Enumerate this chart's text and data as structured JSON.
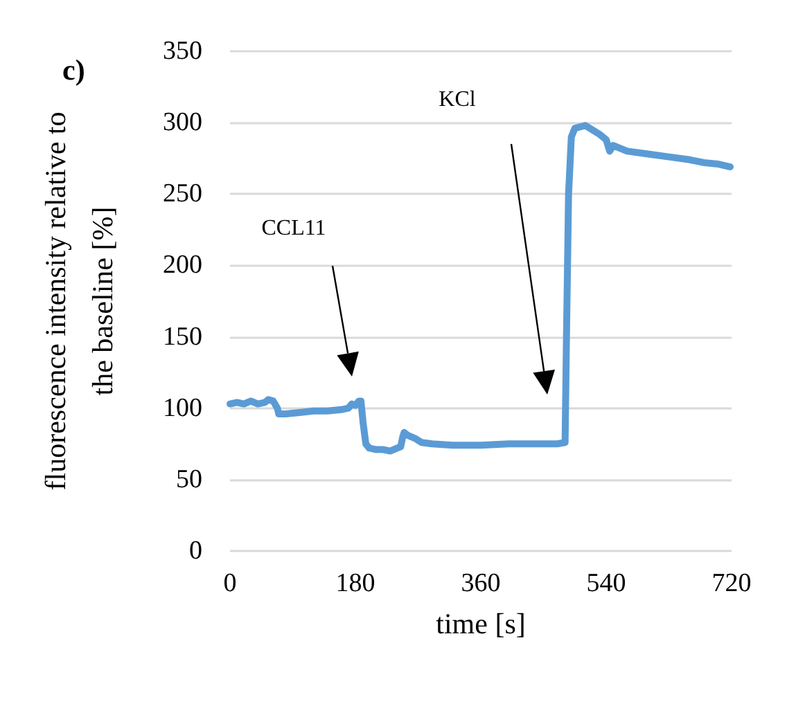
{
  "chart_data": {
    "type": "line",
    "title": "c)",
    "xlabel": "time [s]",
    "ylabel": "fluorescence intensity relative to\nthe baseline [%]",
    "xlim": [
      0,
      720
    ],
    "xticks": [
      0,
      180,
      360,
      540,
      720
    ],
    "ylim": [
      0,
      350
    ],
    "yticks": [
      0,
      50,
      100,
      150,
      200,
      250,
      300,
      350
    ],
    "grid": "y",
    "marker": "none",
    "line_style": "solid",
    "annotations": [
      "CCL11",
      "KCl"
    ],
    "series": [
      {
        "color": "#5b9bd5",
        "x": [
          0,
          10,
          20,
          30,
          40,
          50,
          55,
          62,
          68,
          70,
          80,
          100,
          120,
          140,
          160,
          170,
          175,
          180,
          185,
          188,
          191,
          195,
          200,
          210,
          220,
          230,
          240,
          245,
          248,
          250,
          255,
          265,
          275,
          290,
          320,
          360,
          400,
          440,
          470,
          481,
          483,
          486,
          490,
          495,
          510,
          520,
          530,
          540,
          545,
          550,
          570,
          600,
          630,
          660,
          680,
          700,
          718
        ],
        "values": [
          103,
          104,
          103,
          105,
          103,
          104,
          106,
          105,
          100,
          96,
          96,
          97,
          98,
          98,
          99,
          100,
          103,
          102,
          105,
          105,
          90,
          75,
          72,
          71,
          71,
          70,
          72,
          73,
          80,
          83,
          81,
          79,
          76,
          75,
          74,
          74,
          75,
          75,
          75,
          76,
          150,
          250,
          290,
          296,
          298,
          295,
          292,
          288,
          280,
          284,
          280,
          278,
          276,
          274,
          272,
          271,
          269
        ]
      }
    ]
  }
}
